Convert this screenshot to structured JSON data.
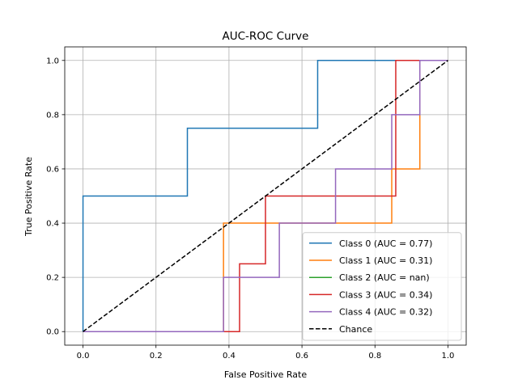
{
  "chart_data": {
    "type": "line",
    "title": "AUC-ROC Curve",
    "xlabel": "False Positive Rate",
    "ylabel": "True Positive Rate",
    "xlim": [
      -0.05,
      1.05
    ],
    "ylim": [
      -0.05,
      1.05
    ],
    "xticks": [
      "0.0",
      "0.2",
      "0.4",
      "0.6",
      "0.8",
      "1.0"
    ],
    "yticks": [
      "0.0",
      "0.2",
      "0.4",
      "0.6",
      "0.8",
      "1.0"
    ],
    "grid": true,
    "legend_position": "lower-right",
    "series": [
      {
        "name": "Class 0 (AUC = 0.77)",
        "color": "#1f77b4",
        "style": "solid",
        "points": [
          [
            0,
            0
          ],
          [
            0,
            0.5
          ],
          [
            0.286,
            0.5
          ],
          [
            0.286,
            0.75
          ],
          [
            0.643,
            0.75
          ],
          [
            0.643,
            1.0
          ],
          [
            1.0,
            1.0
          ]
        ]
      },
      {
        "name": "Class 1 (AUC = 0.31)",
        "color": "#ff7f0e",
        "style": "solid",
        "points": [
          [
            0,
            0
          ],
          [
            0.385,
            0
          ],
          [
            0.385,
            0.4
          ],
          [
            0.846,
            0.4
          ],
          [
            0.846,
            0.6
          ],
          [
            0.923,
            0.6
          ],
          [
            0.923,
            1.0
          ],
          [
            1.0,
            1.0
          ]
        ]
      },
      {
        "name": "Class 2 (AUC = nan)",
        "color": "#2ca02c",
        "style": "solid",
        "points": []
      },
      {
        "name": "Class 3 (AUC = 0.34)",
        "color": "#d62728",
        "style": "solid",
        "points": [
          [
            0,
            0
          ],
          [
            0.429,
            0
          ],
          [
            0.429,
            0.25
          ],
          [
            0.5,
            0.25
          ],
          [
            0.5,
            0.5
          ],
          [
            0.857,
            0.5
          ],
          [
            0.857,
            1.0
          ],
          [
            1.0,
            1.0
          ]
        ]
      },
      {
        "name": "Class 4 (AUC = 0.32)",
        "color": "#9467bd",
        "style": "solid",
        "points": [
          [
            0,
            0
          ],
          [
            0.385,
            0
          ],
          [
            0.385,
            0.2
          ],
          [
            0.538,
            0.2
          ],
          [
            0.538,
            0.4
          ],
          [
            0.692,
            0.4
          ],
          [
            0.692,
            0.6
          ],
          [
            0.846,
            0.6
          ],
          [
            0.846,
            0.8
          ],
          [
            0.923,
            0.8
          ],
          [
            0.923,
            1.0
          ],
          [
            1.0,
            1.0
          ]
        ]
      },
      {
        "name": "Chance",
        "color": "#000000",
        "style": "dashed",
        "points": [
          [
            0,
            0
          ],
          [
            1,
            1
          ]
        ]
      }
    ]
  }
}
